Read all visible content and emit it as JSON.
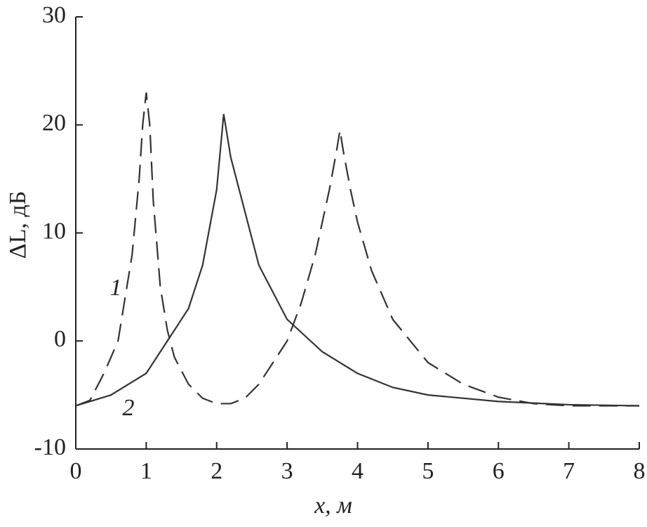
{
  "chart_data": {
    "type": "line",
    "x_label": "x, м",
    "y_label": "ΔL, дБ",
    "xlim": [
      0,
      8
    ],
    "xticks": [
      0,
      1,
      2,
      3,
      4,
      5,
      6,
      7,
      8
    ],
    "ylim": [
      -10,
      30
    ],
    "yticks": [
      -10,
      0,
      10,
      20,
      30
    ],
    "series": [
      {
        "name": "1",
        "color": "#333333",
        "dash": true,
        "x": [
          0,
          0.2,
          0.4,
          0.6,
          0.8,
          0.9,
          0.95,
          1.0,
          1.05,
          1.1,
          1.2,
          1.3,
          1.4,
          1.6,
          1.8,
          2.0,
          2.2,
          2.4,
          2.6,
          2.8,
          3.0,
          3.2,
          3.4,
          3.6,
          3.7,
          3.75,
          3.8,
          3.9,
          4.0,
          4.2,
          4.5,
          5.0,
          5.5,
          6.0,
          6.5,
          7.0,
          8.0
        ],
        "values": [
          -6,
          -5.5,
          -3,
          0,
          8,
          15,
          20,
          23,
          20,
          13,
          5,
          1,
          -1.5,
          -4,
          -5.3,
          -5.8,
          -5.8,
          -5.3,
          -4,
          -2,
          0,
          3.5,
          8,
          14,
          17.5,
          19.5,
          17.5,
          14,
          11,
          6.5,
          2,
          -2,
          -4,
          -5.2,
          -5.8,
          -6,
          -6
        ]
      },
      {
        "name": "2",
        "color": "#333333",
        "dash": false,
        "x": [
          0,
          0.5,
          1.0,
          1.3,
          1.6,
          1.8,
          2.0,
          2.1,
          2.2,
          2.4,
          2.6,
          3.0,
          3.5,
          4.0,
          4.5,
          5.0,
          6.0,
          7.0,
          8.0
        ],
        "values": [
          -6,
          -5,
          -3,
          0,
          3,
          7,
          14,
          21,
          17,
          12,
          7,
          2,
          -1,
          -3,
          -4.3,
          -5,
          -5.6,
          -5.9,
          -6
        ]
      }
    ]
  }
}
